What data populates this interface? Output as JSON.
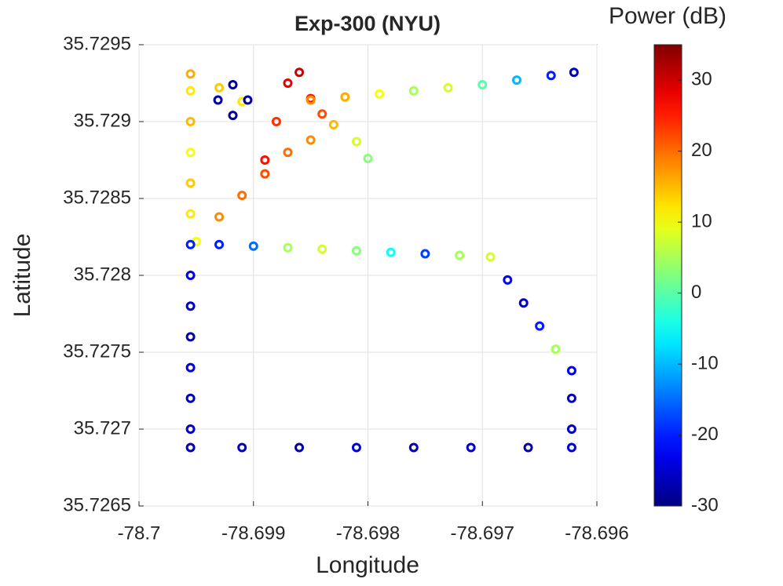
{
  "chart_data": {
    "type": "scatter",
    "title": "Exp-300 (NYU)",
    "x_label": "Longitude",
    "y_label": "Latitude",
    "xlim": [
      -78.7,
      -78.696
    ],
    "xticks": [
      -78.7,
      -78.699,
      -78.698,
      -78.697,
      -78.696
    ],
    "ylim": [
      35.7265,
      35.7295
    ],
    "yticks": [
      35.7265,
      35.727,
      35.7275,
      35.728,
      35.7285,
      35.729,
      35.7295
    ],
    "grid": true,
    "colormap": "jet",
    "colorbar_label": "Power (dB)",
    "clim": [
      -30,
      35
    ],
    "cticks": [
      -30,
      -20,
      -10,
      0,
      10,
      20,
      30
    ],
    "x": [
      -78.69955,
      -78.6991,
      -78.6986,
      -78.6981,
      -78.6976,
      -78.6971,
      -78.6966,
      -78.69622,
      -78.69622,
      -78.69622,
      -78.69622,
      -78.69636,
      -78.6965,
      -78.69664,
      -78.69678,
      -78.69693,
      -78.6972,
      -78.6975,
      -78.6978,
      -78.6981,
      -78.6984,
      -78.6987,
      -78.699,
      -78.6993,
      -78.6995,
      -78.69955,
      -78.69955,
      -78.69955,
      -78.69955,
      -78.69955,
      -78.69955,
      -78.69955,
      -78.69955,
      -78.69955,
      -78.69955,
      -78.69955,
      -78.69955,
      -78.69955,
      -78.6991,
      -78.6993,
      -78.69918,
      -78.69905,
      -78.69918,
      -78.69931,
      -78.6993,
      -78.6991,
      -78.6989,
      -78.6987,
      -78.6985,
      -78.6989,
      -78.6988,
      -78.6987,
      -78.6986,
      -78.6985,
      -78.6984,
      -78.6983,
      -78.6981,
      -78.698,
      -78.6985,
      -78.6982,
      -78.6979,
      -78.6976,
      -78.6973,
      -78.697,
      -78.6967,
      -78.6964,
      -78.6962
    ],
    "y": [
      35.72688,
      35.72688,
      35.72688,
      35.72688,
      35.72688,
      35.72688,
      35.72688,
      35.72688,
      35.727,
      35.7272,
      35.72738,
      35.72752,
      35.72767,
      35.72782,
      35.72797,
      35.72812,
      35.72813,
      35.72814,
      35.72815,
      35.72816,
      35.72817,
      35.72818,
      35.72819,
      35.7282,
      35.72822,
      35.727,
      35.7272,
      35.7274,
      35.7276,
      35.7278,
      35.728,
      35.7282,
      35.7284,
      35.7286,
      35.7288,
      35.729,
      35.7292,
      35.72931,
      35.72913,
      35.72922,
      35.72924,
      35.72914,
      35.72904,
      35.72914,
      35.72838,
      35.72852,
      35.72866,
      35.7288,
      35.72888,
      35.72875,
      35.729,
      35.72925,
      35.72932,
      35.72915,
      35.72905,
      35.72898,
      35.72887,
      35.72876,
      35.72914,
      35.72916,
      35.72918,
      35.7292,
      35.72922,
      35.72924,
      35.72927,
      35.7293,
      35.72932
    ],
    "values": [
      -26,
      -25,
      -27,
      -24,
      -26,
      -25,
      -27,
      -24,
      -25,
      -26,
      -22,
      5,
      -20,
      -25,
      -22,
      8,
      5,
      -18,
      -5,
      3,
      8,
      5,
      -15,
      -20,
      10,
      -25,
      -26,
      -24,
      -27,
      -25,
      -23,
      -20,
      12,
      14,
      10,
      15,
      12,
      16,
      12,
      14,
      -28,
      -28,
      -28,
      -28,
      18,
      20,
      22,
      20,
      18,
      26,
      24,
      28,
      30,
      26,
      22,
      15,
      8,
      3,
      18,
      16,
      10,
      5,
      8,
      0,
      -10,
      -20,
      -25
    ]
  }
}
